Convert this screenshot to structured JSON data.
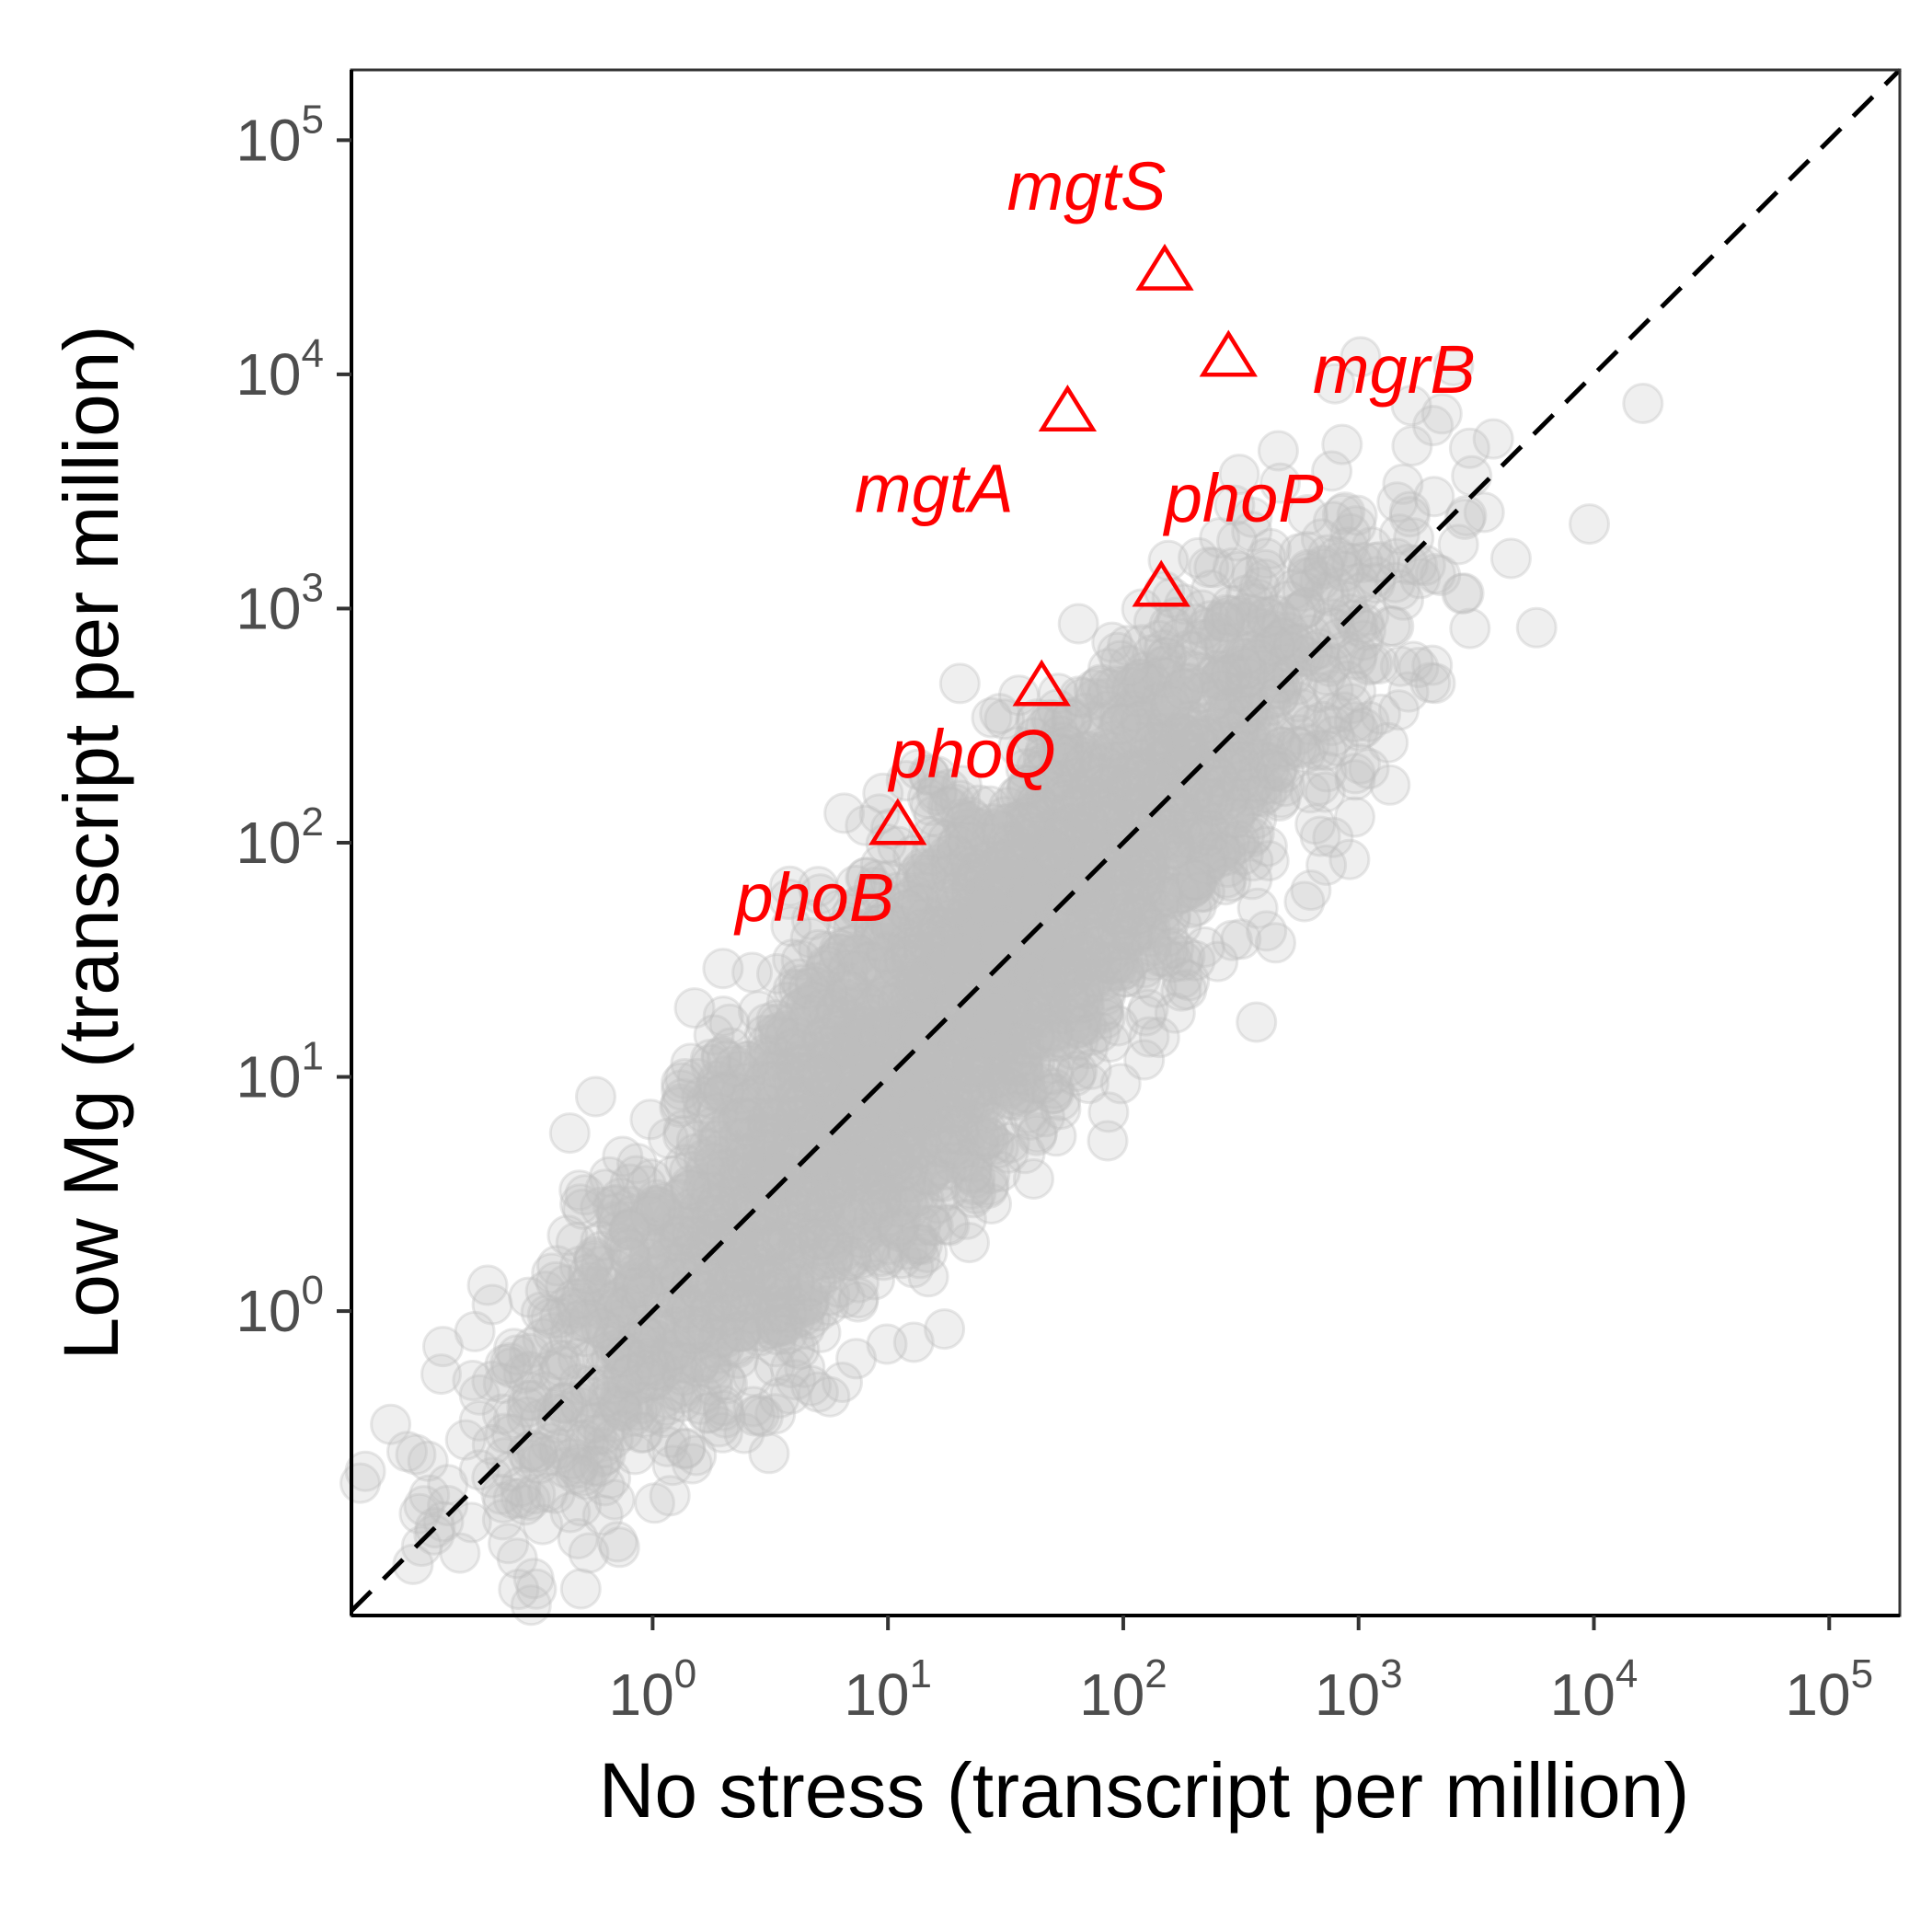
{
  "chart_data": {
    "type": "scatter",
    "xlabel": "No stress (transcript per million)",
    "ylabel": "Low Mg (transcript per million)",
    "x_scale": "log10",
    "y_scale": "log10",
    "xlim_log10": [
      -1.28,
      5.3
    ],
    "ylim_log10": [
      -1.3,
      5.3
    ],
    "x_ticks": [
      {
        "base": "10",
        "exp": "0"
      },
      {
        "base": "10",
        "exp": "1"
      },
      {
        "base": "10",
        "exp": "2"
      },
      {
        "base": "10",
        "exp": "3"
      },
      {
        "base": "10",
        "exp": "4"
      },
      {
        "base": "10",
        "exp": "5"
      }
    ],
    "y_ticks": [
      {
        "base": "10",
        "exp": "0"
      },
      {
        "base": "10",
        "exp": "1"
      },
      {
        "base": "10",
        "exp": "2"
      },
      {
        "base": "10",
        "exp": "3"
      },
      {
        "base": "10",
        "exp": "4"
      },
      {
        "base": "10",
        "exp": "5"
      }
    ],
    "reference_line": {
      "style": "dashed",
      "slope": 1,
      "intercept": 0,
      "color": "#000000"
    },
    "background_series": {
      "name": "all genes",
      "color": "#bebebe",
      "opacity": 0.25,
      "approx_count": 4000,
      "description": "cloud of genes roughly following y = x with spread about 0.6 log units"
    },
    "highlighted_genes": [
      {
        "gene": "mgtS",
        "x": 150,
        "y": 28000
      },
      {
        "gene": "mgrB",
        "x": 280,
        "y": 12000
      },
      {
        "gene": "mgtA",
        "x": 58,
        "y": 7000
      },
      {
        "gene": "phoP",
        "x": 145,
        "y": 1250
      },
      {
        "gene": "phoQ",
        "x": 45,
        "y": 470
      },
      {
        "gene": "phoB",
        "x": 11,
        "y": 120
      }
    ],
    "highlight_color": "#ff0000",
    "highlight_marker": "open-triangle"
  }
}
